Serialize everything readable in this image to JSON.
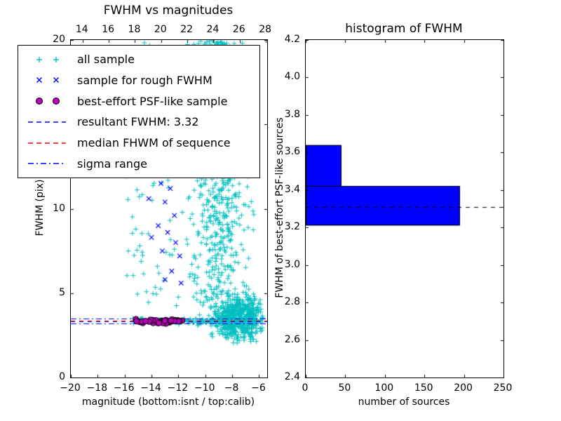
{
  "figure": {
    "background": "#ffffff"
  },
  "chart_data": [
    {
      "type": "scatter",
      "title": "FWHM vs magnitudes",
      "xlabel": "magnitude (bottom:isnt / top:calib)",
      "ylabel": "FWHM (pix)",
      "xlim": [
        -20,
        -5.4
      ],
      "ylim": [
        0,
        20
      ],
      "xticks": [
        -20,
        -18,
        -16,
        -14,
        -12,
        -10,
        -8,
        -6
      ],
      "yticks": [
        0,
        5,
        10,
        15,
        20
      ],
      "top_axis": {
        "xlim": [
          13.1,
          28.1
        ],
        "ticks": [
          14,
          16,
          18,
          20,
          22,
          24,
          26,
          28
        ]
      },
      "grid": false,
      "series": [
        {
          "name": "all sample",
          "marker": "plus",
          "color": "#00bfbf",
          "seed": 20,
          "clusters": [
            {
              "n": 120,
              "x": {
                "dist": "uniform",
                "min": -16.0,
                "max": -10.3
              },
              "y": {
                "dist": "uniform",
                "min": 3.4,
                "max": 20
              }
            },
            {
              "n": 620,
              "x": {
                "dist": "gauss",
                "mean": -8.9,
                "sd": 1.0,
                "min": -11.2,
                "max": -6.2
              },
              "y": {
                "dist": "uniform",
                "min": 3.0,
                "max": 20
              }
            },
            {
              "n": 260,
              "x": {
                "dist": "gauss",
                "mean": -9.2,
                "sd": 0.6,
                "min": -10.8,
                "max": -7.6
              },
              "y": {
                "dist": "uniform",
                "min": 13.0,
                "max": 20
              }
            },
            {
              "n": 520,
              "x": {
                "dist": "gauss",
                "mean": -7.4,
                "sd": 0.9,
                "min": -9.8,
                "max": -5.7
              },
              "y": {
                "dist": "gauss",
                "mean": 3.5,
                "sd": 0.65,
                "min": 2.0,
                "max": 5.6
              }
            },
            {
              "n": 200,
              "x": {
                "dist": "uniform",
                "min": -15.4,
                "max": -6.0
              },
              "y": {
                "dist": "gauss",
                "mean": 3.35,
                "sd": 0.08,
                "min": 3.1,
                "max": 3.6
              }
            }
          ]
        },
        {
          "name": "sample for rough FWHM",
          "marker": "x",
          "color": "#0000ff",
          "points": [
            [
              -13.6,
              13.3
            ],
            [
              -12.9,
              12.6
            ],
            [
              -13.3,
              11.5
            ],
            [
              -12.6,
              11.2
            ],
            [
              -14.2,
              10.6
            ],
            [
              -13.0,
              10.4
            ],
            [
              -12.3,
              9.6
            ],
            [
              -13.5,
              9.0
            ],
            [
              -12.8,
              8.6
            ],
            [
              -14.0,
              8.3
            ],
            [
              -12.2,
              8.0
            ],
            [
              -13.2,
              7.5
            ],
            [
              -11.9,
              7.2
            ],
            [
              -12.5,
              6.3
            ],
            [
              -13.0,
              5.8
            ],
            [
              -11.8,
              5.6
            ]
          ]
        },
        {
          "name": "best-effort PSF-like sample",
          "marker": "circle",
          "color": "#bf00bf",
          "edge": "#000000",
          "seed": 7,
          "clusters": [
            {
              "n": 42,
              "x": {
                "dist": "uniform",
                "min": -15.2,
                "max": -11.6
              },
              "y": {
                "dist": "gauss",
                "mean": 3.32,
                "sd": 0.06,
                "min": 3.15,
                "max": 3.5
              }
            }
          ]
        }
      ],
      "hlines": [
        {
          "name": "resultant FWHM",
          "y": 3.32,
          "color": "#0000ff",
          "style": "dashed"
        },
        {
          "name": "median FHWM of sequence",
          "y": 3.38,
          "color": "#ff0000",
          "style": "dashed"
        },
        {
          "name": "sigma range low",
          "y": 3.2,
          "color": "#0000ff",
          "style": "dashdot"
        },
        {
          "name": "sigma range high",
          "y": 3.5,
          "color": "#0000ff",
          "style": "dashdot"
        }
      ],
      "legend": {
        "items": [
          {
            "label": "all sample",
            "symbol": "plus",
            "color": "#00bfbf"
          },
          {
            "label": "sample for rough FWHM",
            "symbol": "x",
            "color": "#0000ff"
          },
          {
            "label": "best-effort PSF-like sample",
            "symbol": "circle",
            "color": "#bf00bf",
            "edge": "#000000"
          },
          {
            "label": "resultant FWHM: 3.32",
            "symbol": "dashed-line",
            "color": "#0000ff"
          },
          {
            "label": "median FHWM of sequence",
            "symbol": "dashed-line",
            "color": "#ff0000"
          },
          {
            "label": "sigma range",
            "symbol": "dashdot-line",
            "color": "#0000ff"
          }
        ]
      }
    },
    {
      "type": "bar",
      "orientation": "horizontal",
      "title": "histogram of FWHM",
      "xlabel": "number of sources",
      "ylabel": "FWHM of best-effort PSF-like sources",
      "xlim": [
        0,
        250
      ],
      "ylim": [
        2.4,
        4.2
      ],
      "xticks": [
        0,
        50,
        100,
        150,
        200,
        250
      ],
      "yticks": [
        2.4,
        2.6,
        2.8,
        3.0,
        3.2,
        3.4,
        3.6,
        3.8,
        4.0,
        4.2
      ],
      "grid": false,
      "bar_color": "#0000ff",
      "bar_edge": "#000000",
      "bins": [
        {
          "from": 3.21,
          "to": 3.42,
          "count": 195
        },
        {
          "from": 3.42,
          "to": 3.64,
          "count": 45
        }
      ],
      "marker_line": {
        "name": "median FWHM",
        "y": 3.31,
        "color": "#000000",
        "style": "dashed"
      }
    }
  ]
}
